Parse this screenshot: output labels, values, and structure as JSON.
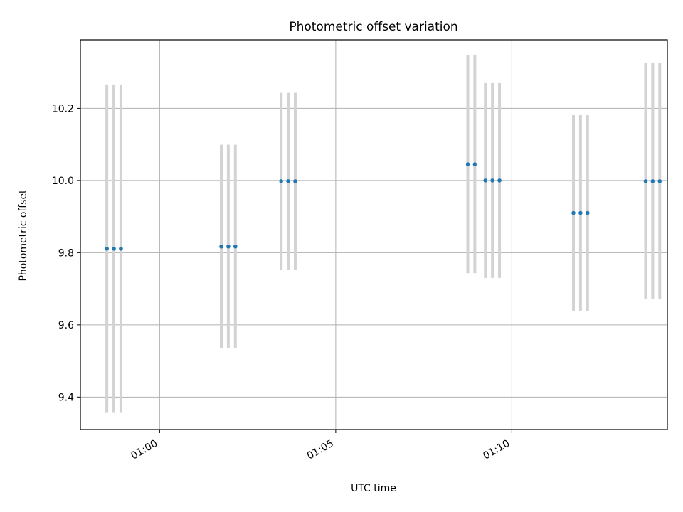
{
  "chart_data": {
    "type": "scatter",
    "title": "Photometric offset variation",
    "xlabel": "UTC time",
    "ylabel": "Photometric offset",
    "x_unit": "minutes",
    "xlim": [
      "00:57:45",
      "01:14:25"
    ],
    "ylim": [
      9.31,
      10.39
    ],
    "xticks": [
      "01:00",
      "01:05",
      "01:10"
    ],
    "yticks": [
      9.4,
      9.6,
      9.8,
      10.0,
      10.2
    ],
    "grid": true,
    "legend": "none",
    "colors": {
      "point": "#1f77b4",
      "errorbar": "#d3d3d3",
      "grid": "#b0b0b0"
    },
    "series": [
      {
        "x": [
          "00:58:30",
          "00:58:42",
          "00:58:54",
          "01:01:45",
          "01:01:57",
          "01:02:09",
          "01:03:27",
          "01:03:39",
          "01:03:51",
          "01:08:45",
          "01:08:57",
          "01:09:15",
          "01:09:27",
          "01:09:39",
          "01:11:45",
          "01:11:57",
          "01:12:09",
          "01:13:48",
          "01:14:00",
          "01:14:12"
        ],
        "y": [
          9.811,
          9.811,
          9.811,
          9.817,
          9.817,
          9.817,
          9.998,
          9.998,
          9.998,
          10.045,
          10.045,
          10.0,
          10.0,
          10.0,
          9.91,
          9.91,
          9.91,
          9.998,
          9.998,
          9.998
        ],
        "yerr": [
          0.455,
          0.455,
          0.455,
          0.282,
          0.282,
          0.282,
          0.245,
          0.245,
          0.245,
          0.302,
          0.302,
          0.27,
          0.27,
          0.27,
          0.271,
          0.271,
          0.271,
          0.327,
          0.327,
          0.327
        ]
      }
    ]
  }
}
